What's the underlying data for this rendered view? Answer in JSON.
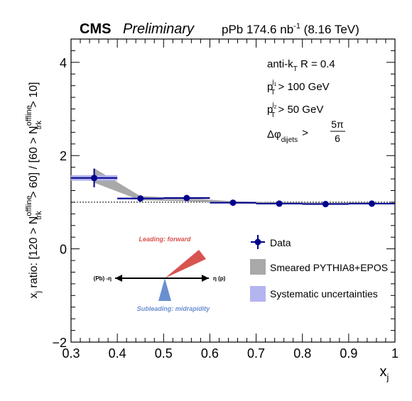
{
  "chart_data": {
    "type": "scatter",
    "header": {
      "experiment": "CMS",
      "status": "Preliminary",
      "lumi_prefix": "pPb 174.6 nb",
      "lumi_exp": "-1",
      "energy": "(8.16 TeV)"
    },
    "xlabel": "x",
    "xlabel_sub": "j",
    "ylabel": "x_j ratio: [120 > N_trk^offline > 60] / [60 > N_trk^offline > 10]",
    "xlim": [
      0.3,
      1.0
    ],
    "ylim": [
      -2,
      4.5
    ],
    "x_ticks": [
      "0.3",
      "0.4",
      "0.5",
      "0.6",
      "0.7",
      "0.8",
      "0.9",
      "1"
    ],
    "y_ticks": [
      "−2",
      "0",
      "2",
      "4"
    ],
    "reference_line": 1.0,
    "cuts": {
      "line1": "anti-k",
      "line1_sub": "T",
      "line1_rest": " R = 0.4",
      "line2_rest": " > 100 GeV",
      "line3_rest": " > 50 GeV",
      "line4_var": "Δφ",
      "line4_sub": "dijets",
      "line4_gt": ">",
      "line4_num": "5π",
      "line4_den": "6",
      "p_letter": "p",
      "p_sub": "T",
      "j1_sup": "j",
      "j1_sup_sub": "1",
      "j2_sup": "j",
      "j2_sup_sub": "2"
    },
    "series": [
      {
        "name": "Data",
        "color": "#00008b",
        "points": [
          {
            "x": 0.35,
            "y": 1.52,
            "xerr": 0.05,
            "yerr": 0.2
          },
          {
            "x": 0.45,
            "y": 1.08,
            "xerr": 0.05,
            "yerr": 0.04
          },
          {
            "x": 0.55,
            "y": 1.09,
            "xerr": 0.05,
            "yerr": 0.04
          },
          {
            "x": 0.65,
            "y": 0.99,
            "xerr": 0.05,
            "yerr": 0.03
          },
          {
            "x": 0.75,
            "y": 0.97,
            "xerr": 0.05,
            "yerr": 0.03
          },
          {
            "x": 0.85,
            "y": 0.96,
            "xerr": 0.05,
            "yerr": 0.03
          },
          {
            "x": 0.95,
            "y": 0.97,
            "xerr": 0.05,
            "yerr": 0.03
          }
        ]
      },
      {
        "name": "Smeared PYTHIA8+EPOS",
        "color": "#a9a9a9",
        "band": [
          {
            "x": 0.35,
            "lo": 1.42,
            "hi": 1.73
          },
          {
            "x": 0.45,
            "lo": 1.04,
            "hi": 1.13
          },
          {
            "x": 0.55,
            "lo": 1.02,
            "hi": 1.09
          },
          {
            "x": 0.65,
            "lo": 0.97,
            "hi": 1.02
          },
          {
            "x": 0.75,
            "lo": 0.96,
            "hi": 1.0
          },
          {
            "x": 0.85,
            "lo": 0.95,
            "hi": 0.99
          },
          {
            "x": 0.95,
            "lo": 0.96,
            "hi": 1.0
          }
        ]
      },
      {
        "name": "Systematic uncertainties",
        "color": "#b4b4f0",
        "boxes": [
          {
            "x": 0.35,
            "lo": 1.46,
            "hi": 1.58
          },
          {
            "x": 0.45,
            "lo": 1.06,
            "hi": 1.1
          },
          {
            "x": 0.55,
            "lo": 1.07,
            "hi": 1.11
          },
          {
            "x": 0.65,
            "lo": 0.975,
            "hi": 1.005
          },
          {
            "x": 0.75,
            "lo": 0.955,
            "hi": 0.985
          },
          {
            "x": 0.85,
            "lo": 0.945,
            "hi": 0.975
          },
          {
            "x": 0.95,
            "lo": 0.955,
            "hi": 0.985
          }
        ]
      }
    ],
    "legend": [
      {
        "label": "Data"
      },
      {
        "label": "Smeared PYTHIA8+EPOS"
      },
      {
        "label": "Systematic uncertainties"
      }
    ],
    "inset": {
      "leading_label": "Leading: forward",
      "leading_color": "#d9534f",
      "subleading_label": "Subleading: midrapidity",
      "subleading_color": "#6a8fd0",
      "left_label": "(Pb) -η",
      "right_label": "η (p)"
    }
  }
}
